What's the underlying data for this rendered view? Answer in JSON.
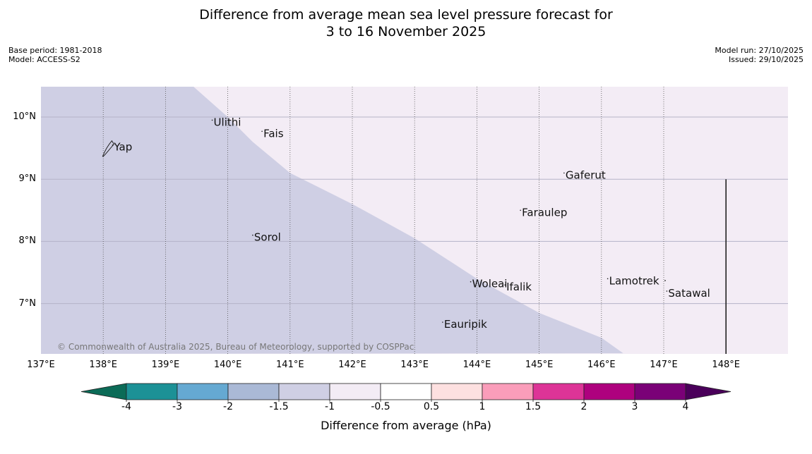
{
  "title": {
    "line1": "Difference from average mean sea level pressure forecast for",
    "line2": "3 to 16 November 2025"
  },
  "meta_left": [
    "Base period: 1981-2018",
    "Model: ACCESS-S2"
  ],
  "meta_right": [
    "Model run: 27/10/2025",
    "Issued: 29/10/2025"
  ],
  "map": {
    "lon_range": [
      137,
      149
    ],
    "lat_range": [
      6.2,
      10.5
    ],
    "lon_ticks": [
      137,
      138,
      139,
      140,
      141,
      142,
      143,
      144,
      145,
      146,
      147,
      148
    ],
    "lon_labels": [
      "137°E",
      "138°E",
      "139°E",
      "140°E",
      "141°E",
      "142°E",
      "143°E",
      "144°E",
      "145°E",
      "146°E",
      "147°E",
      "148°E"
    ],
    "lat_ticks": [
      10,
      9,
      8,
      7
    ],
    "lat_labels": [
      "10°N",
      "9°N",
      "8°N",
      "7°N"
    ],
    "field_low_color": "#cfcfe4",
    "field_high_color": "#f3ecf5",
    "contour_lonlat": [
      [
        138.45,
        10.5
      ],
      [
        139.1,
        10.5
      ],
      [
        139.45,
        10.5
      ],
      [
        140.0,
        10.0
      ],
      [
        140.4,
        9.6
      ],
      [
        141.0,
        9.1
      ],
      [
        141.5,
        8.85
      ],
      [
        142.0,
        8.6
      ],
      [
        143.0,
        8.05
      ],
      [
        144.0,
        7.4
      ],
      [
        145.0,
        6.85
      ],
      [
        146.0,
        6.45
      ],
      [
        146.35,
        6.2
      ]
    ],
    "places": [
      {
        "name": "Ulithi",
        "lon": 139.75,
        "lat": 9.95
      },
      {
        "name": "Fais",
        "lon": 140.55,
        "lat": 9.77
      },
      {
        "name": "Yap",
        "lon": 138.15,
        "lat": 9.55
      },
      {
        "name": "Gaferut",
        "lon": 145.4,
        "lat": 9.1
      },
      {
        "name": "Faraulep",
        "lon": 144.7,
        "lat": 8.5
      },
      {
        "name": "Sorol",
        "lon": 140.4,
        "lat": 8.1
      },
      {
        "name": "Lamotrek",
        "lon": 146.1,
        "lat": 7.4
      },
      {
        "name": "Woleai",
        "lon": 143.9,
        "lat": 7.35
      },
      {
        "name": "Ifalik",
        "lon": 144.45,
        "lat": 7.3
      },
      {
        "name": "Satawal",
        "lon": 147.05,
        "lat": 7.2
      },
      {
        "name": "Eauripik",
        "lon": 143.45,
        "lat": 6.7
      }
    ],
    "boundary_line": {
      "lon": 148.0,
      "lat_top": 9.0,
      "lat_bottom": 6.2
    },
    "copyright": "© Commonwealth of Australia 2025, Bureau of Meteorology, supported by COSPPac"
  },
  "colorbar": {
    "title": "Difference from average (hPa)",
    "low_extend_color": "#0b6b57",
    "high_extend_color": "#4a005a",
    "bins": [
      "#1c9196",
      "#65a9d2",
      "#aab9d6",
      "#cfcfe4",
      "#f3ecf5",
      "#ffffff",
      "#fde0e0",
      "#fa9dba",
      "#dd3497",
      "#ae017e",
      "#7a0177"
    ],
    "labels": [
      "-4",
      "-3",
      "-2",
      "-1.5",
      "-1",
      "-0.5",
      "0.5",
      "1",
      "1.5",
      "2",
      "3",
      "4"
    ]
  }
}
